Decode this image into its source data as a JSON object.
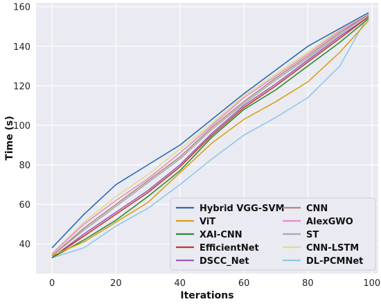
{
  "chart_data": {
    "type": "line",
    "xlabel": "Iterations",
    "ylabel": "Time (s)",
    "xlim": [
      -5,
      102
    ],
    "ylim": [
      25,
      162
    ],
    "xticks": [
      "0",
      "20",
      "40",
      "60",
      "80",
      "100"
    ],
    "yticks": [
      "40",
      "60",
      "80",
      "100",
      "120",
      "140",
      "160"
    ],
    "grid": true,
    "background": "#eaeaf2",
    "legend_placement": "lower-right",
    "legend_columns": 2,
    "x": [
      0,
      10,
      20,
      30,
      40,
      50,
      60,
      70,
      80,
      90,
      99
    ],
    "series": [
      {
        "name": "Hybrid VGG-SVM",
        "color": "#2a6ab0",
        "values": [
          38,
          55,
          70,
          80,
          90,
          103,
          116,
          128,
          140,
          149,
          157
        ]
      },
      {
        "name": "ViT",
        "color": "#d9a012",
        "values": [
          34,
          41,
          51,
          61,
          76,
          91,
          103,
          112,
          122,
          137,
          153
        ]
      },
      {
        "name": "XAI-CNN",
        "color": "#2e8b2e",
        "values": [
          33,
          42,
          52,
          64,
          77,
          94,
          108,
          118,
          130,
          142,
          154
        ]
      },
      {
        "name": "EfficientNet",
        "color": "#c0392b",
        "values": [
          33,
          44,
          55,
          66,
          79,
          95,
          109,
          120,
          132,
          144,
          155
        ]
      },
      {
        "name": "DSCC_Net",
        "color": "#9b59b6",
        "values": [
          33,
          45,
          56,
          67,
          80,
          96,
          110,
          121,
          133,
          145,
          155
        ]
      },
      {
        "name": "CNN",
        "color": "#b08a78",
        "values": [
          34,
          48,
          60,
          72,
          84,
          99,
          112,
          124,
          135,
          147,
          156
        ]
      },
      {
        "name": "AlexGWO",
        "color": "#e88ac4",
        "values": [
          35,
          50,
          62,
          73,
          86,
          100,
          114,
          125,
          136,
          148,
          156
        ]
      },
      {
        "name": "ST",
        "color": "#a9a9a9",
        "values": [
          34,
          47,
          59,
          71,
          83,
          98,
          111,
          123,
          134,
          146,
          156
        ]
      },
      {
        "name": "CNN-LSTM",
        "color": "#dede8c",
        "values": [
          35,
          51,
          64,
          75,
          88,
          101,
          115,
          126,
          137,
          149,
          157
        ]
      },
      {
        "name": "DL-PCMNet",
        "color": "#8ec8e8",
        "values": [
          33,
          38,
          49,
          58,
          70,
          83,
          95,
          104,
          114,
          130,
          156
        ]
      }
    ]
  }
}
